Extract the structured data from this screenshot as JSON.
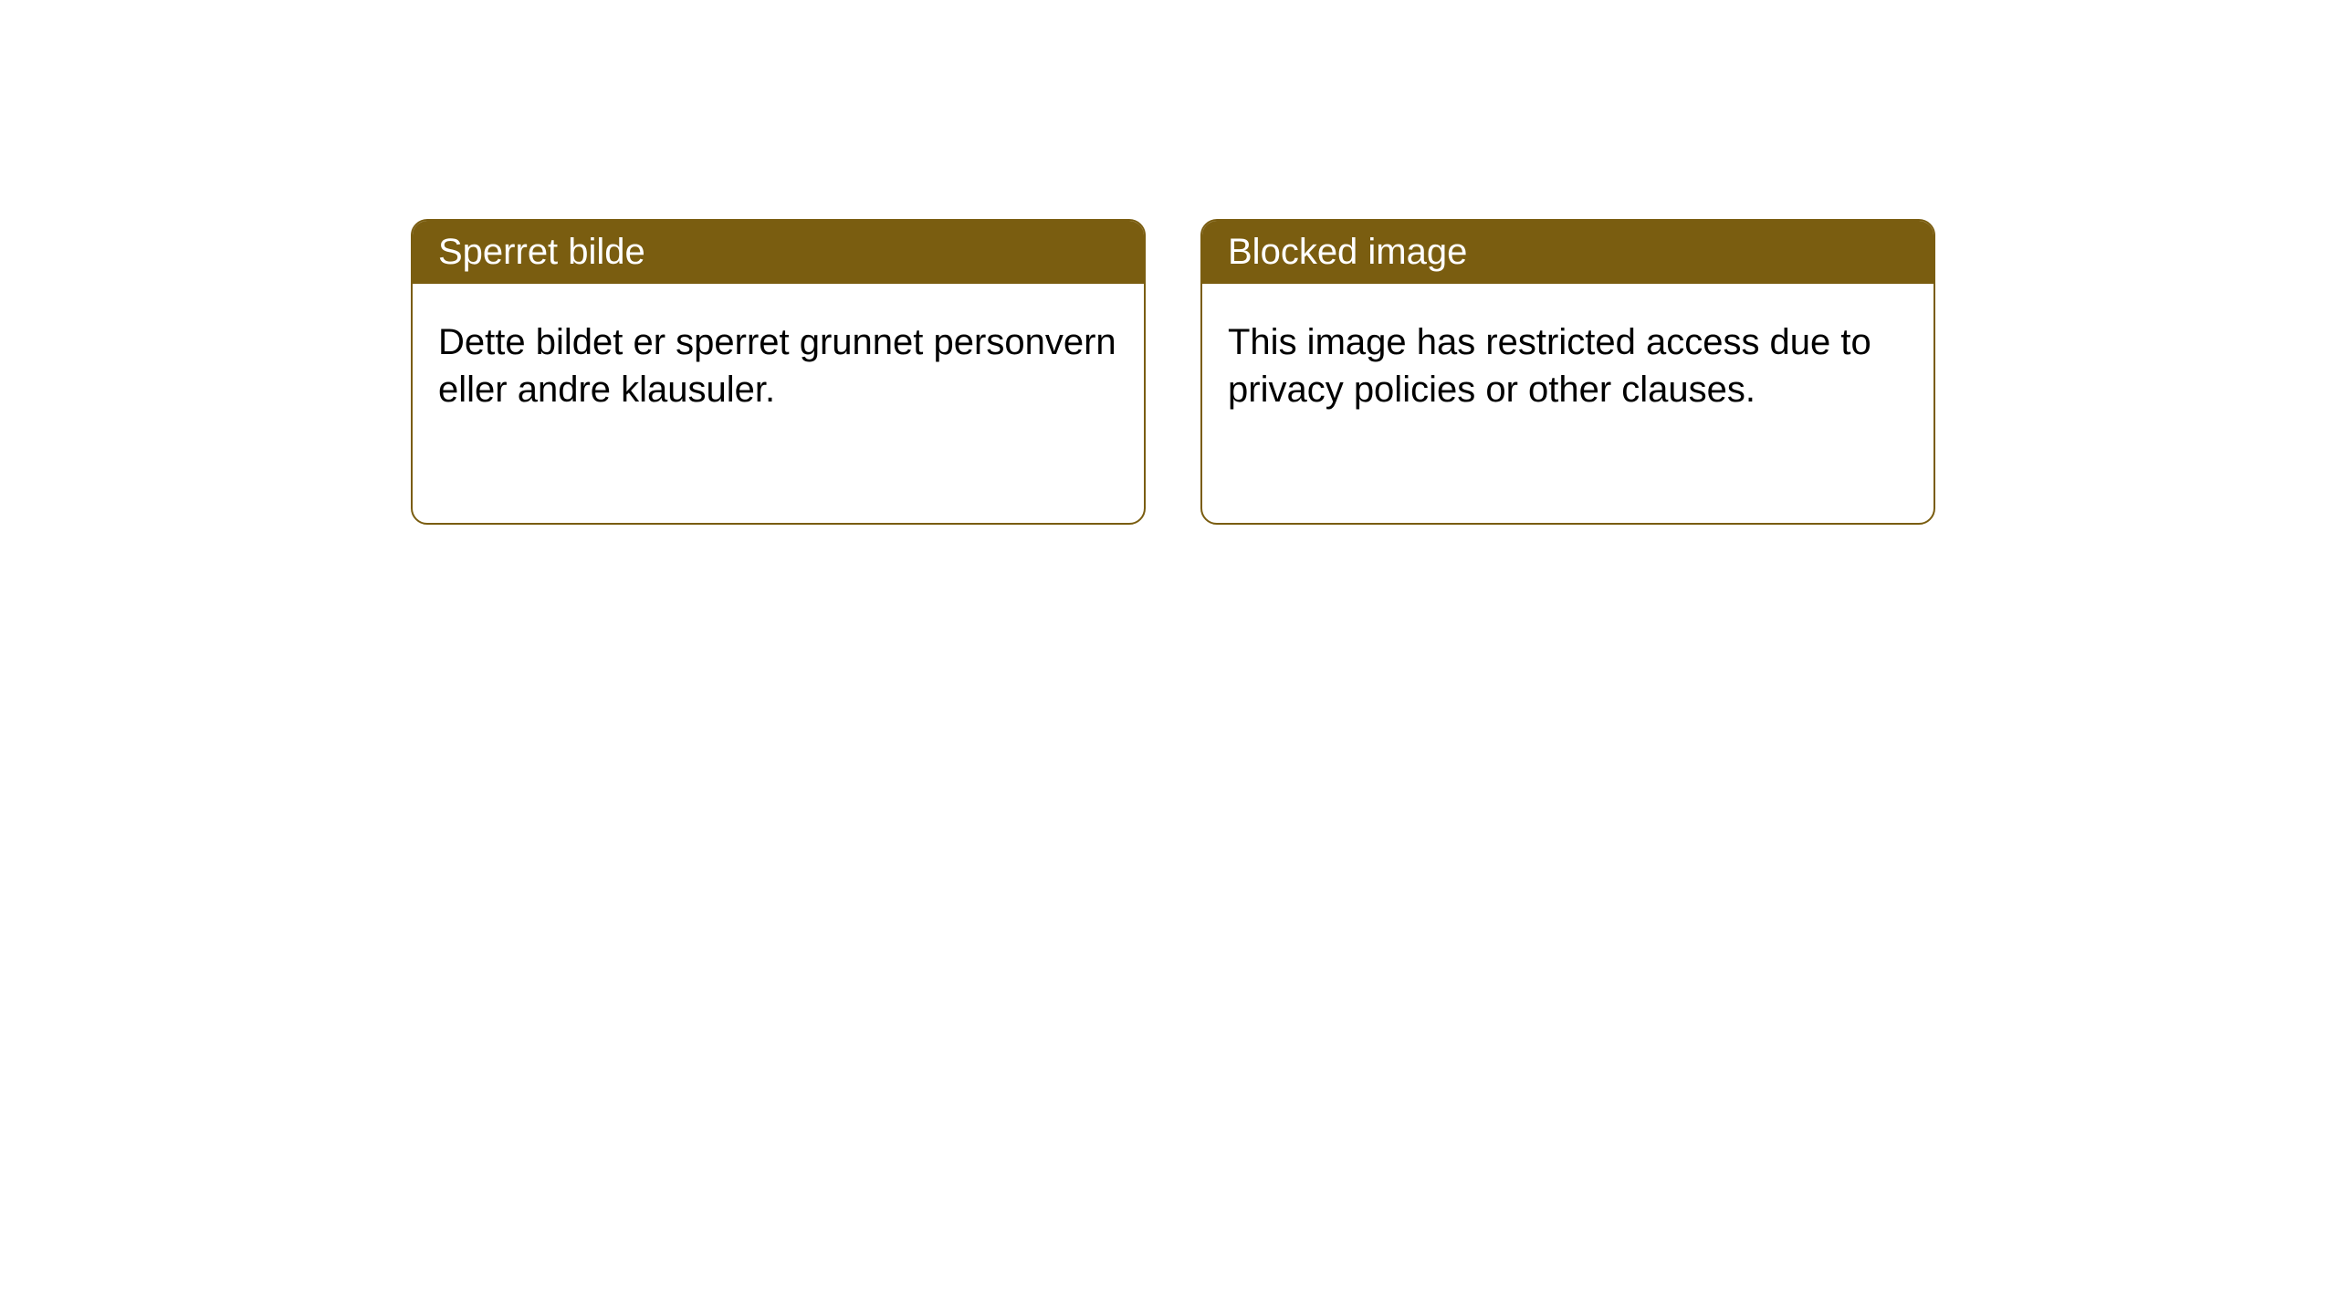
{
  "cards": [
    {
      "title": "Sperret bilde",
      "body": "Dette bildet er sperret grunnet personvern eller andre klausuler."
    },
    {
      "title": "Blocked image",
      "body": "This image has restricted access due to privacy policies or other clauses."
    }
  ],
  "styles": {
    "card_border_color": "#7a5d10",
    "card_header_bg": "#7a5d10",
    "card_header_text_color": "#ffffff",
    "card_body_bg": "#ffffff",
    "card_body_text_color": "#000000",
    "border_radius": 18,
    "header_fontsize": 40,
    "body_fontsize": 40,
    "page_bg": "#ffffff"
  }
}
